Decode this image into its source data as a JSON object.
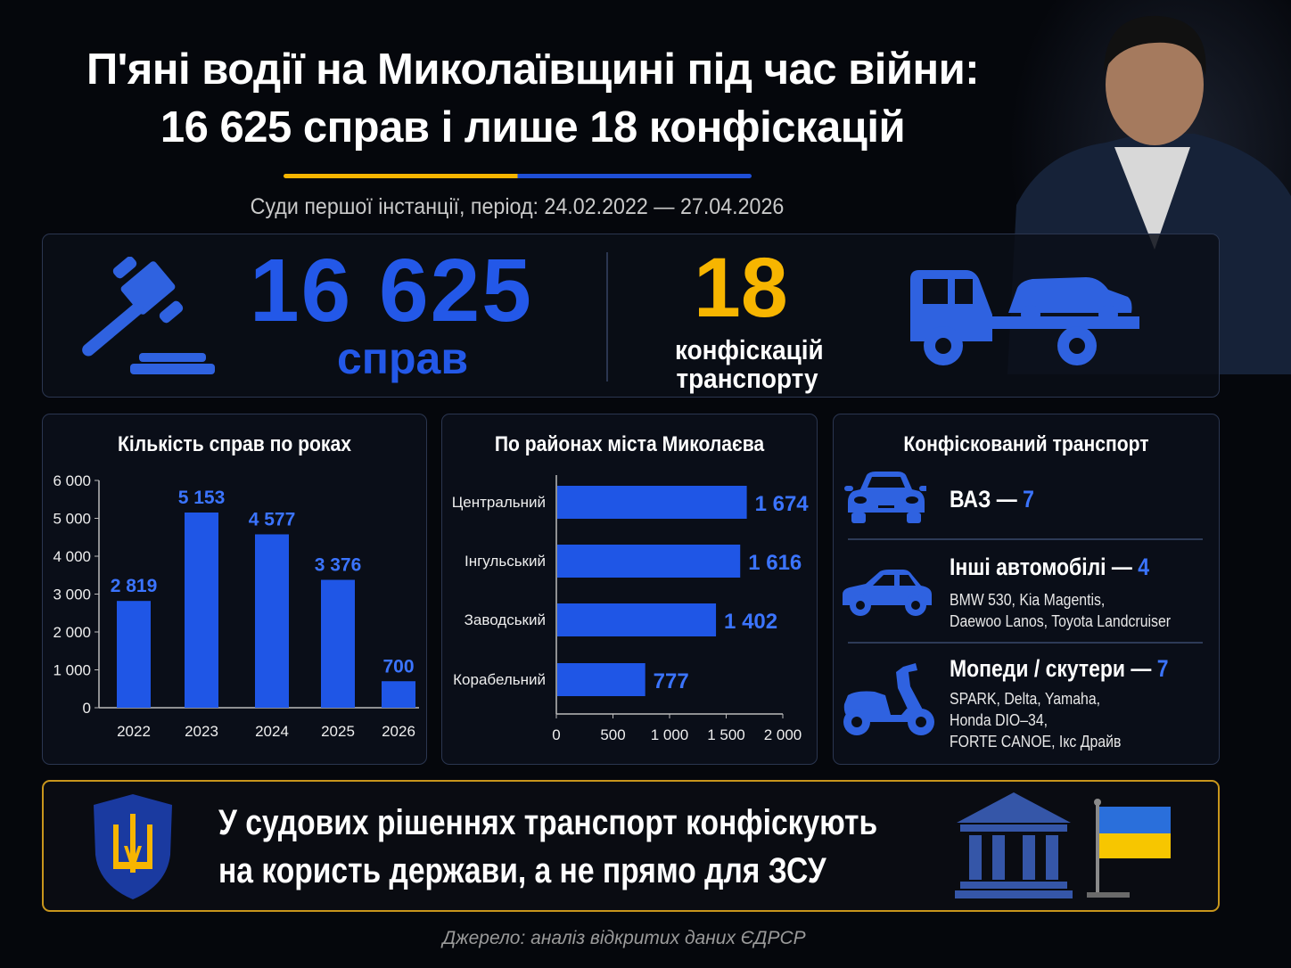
{
  "header": {
    "title_line1": "П'яні водії на Миколаївщині під час війни:",
    "title_line2": "16 625 справ і лише 18 конфіскацій",
    "subtitle": "Суди першої інстанції, період: 24.02.2022 — 27.04.2026"
  },
  "stats": {
    "cases_number": "16 625",
    "cases_label": "справ",
    "confiscations_number": "18",
    "confiscations_label_line1": "конфіскацій",
    "confiscations_label_line2": "транспорту"
  },
  "colors": {
    "accent_blue": "#2358e8",
    "accent_yellow": "#f7b500",
    "border_gold": "#c8961c",
    "background": "#05070c"
  },
  "chart_data": [
    {
      "type": "bar",
      "title": "Кількість справ по роках",
      "categories": [
        "2022",
        "2023",
        "2024",
        "2025",
        "2026"
      ],
      "values": [
        2819,
        5153,
        4577,
        3376,
        700
      ],
      "value_labels": [
        "2 819",
        "5 153",
        "4 577",
        "3 376",
        "700"
      ],
      "ylim": [
        0,
        6000
      ],
      "yticks": [
        "0",
        "1 000",
        "2 000",
        "3 000",
        "4 000",
        "5 000",
        "6 000"
      ],
      "grid": false
    },
    {
      "type": "bar",
      "orientation": "horizontal",
      "title": "По районах міста Миколаєва",
      "categories": [
        "Центральний",
        "Інгульський",
        "Заводський",
        "Корабельний"
      ],
      "values": [
        1674,
        1616,
        1402,
        777
      ],
      "value_labels": [
        "1 674",
        "1 616",
        "1 402",
        "777"
      ],
      "xlim": [
        0,
        2000
      ],
      "xticks": [
        "0",
        "500",
        "1 000",
        "1 500",
        "2 000"
      ],
      "grid": false
    }
  ],
  "transport": {
    "title": "Конфісковaний транспорт",
    "items": [
      {
        "icon": "car-front-icon",
        "name": "ВАЗ —",
        "count": "7",
        "details": []
      },
      {
        "icon": "sedan-icon",
        "name": "Інші автомобілі —",
        "count": "4",
        "details": [
          "BMW 530, Kia Magentis,",
          "Daewoo Lanos, Toyota Landcruiser"
        ]
      },
      {
        "icon": "scooter-icon",
        "name": "Мопеди / скутери —",
        "count": "7",
        "details": [
          "SPARK, Delta, Yamaha,",
          "Honda DIO–34,",
          "FORTE CANOE, Ікс Драйв"
        ]
      }
    ]
  },
  "banner": {
    "line1": "У судових рішеннях транспорт конфіскують",
    "line2": "на користь держави, а не прямо для ЗСУ"
  },
  "footer": {
    "source": "Джерело: аналіз відкритих даних ЄДРСР"
  }
}
